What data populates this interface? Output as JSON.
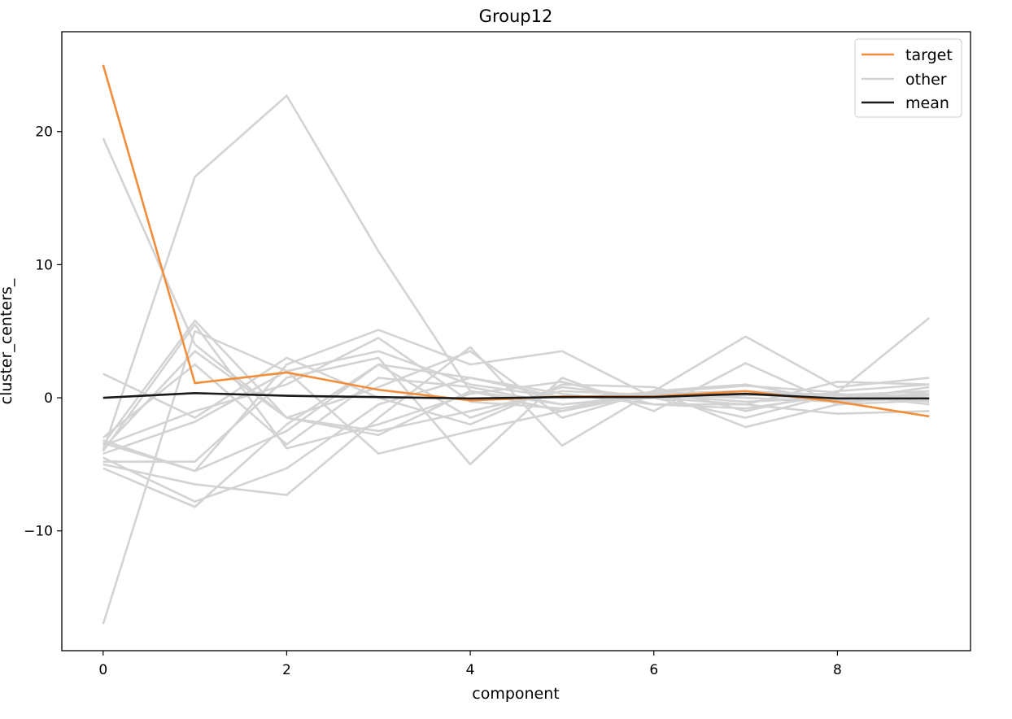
{
  "chart_data": {
    "type": "line",
    "title": "Group12",
    "xlabel": "component",
    "ylabel": "cluster_centers_",
    "x": [
      0,
      1,
      2,
      3,
      4,
      5,
      6,
      7,
      8,
      9
    ],
    "xlim": [
      -0.45,
      9.45
    ],
    "ylim": [
      -19.0,
      27.5
    ],
    "xticks": [
      0,
      2,
      4,
      6,
      8
    ],
    "yticks": [
      -10,
      0,
      10,
      20
    ],
    "ytick_labels": [
      "−10",
      "0",
      "10",
      "20"
    ],
    "legend": {
      "placement": "upper right",
      "entries": [
        "target",
        "other",
        "mean"
      ]
    },
    "colors": {
      "target": "#f28e3b",
      "other": "#d3d3d3",
      "mean": "#1a1a1a"
    },
    "series": [
      {
        "name": "other",
        "values": [
          19.5,
          4.0,
          -1.5,
          -2.5,
          -1.0,
          0.5,
          0.2,
          -0.3,
          0.0,
          0.3
        ]
      },
      {
        "name": "other",
        "values": [
          -17.0,
          5.0,
          2.0,
          3.5,
          1.0,
          0.0,
          0.3,
          0.5,
          0.2,
          0.5
        ]
      },
      {
        "name": "other",
        "values": [
          -4.0,
          16.6,
          22.7,
          11.0,
          0.5,
          -0.5,
          0.2,
          0.0,
          -0.3,
          0.2
        ]
      },
      {
        "name": "other",
        "values": [
          1.8,
          -1.5,
          3.0,
          0.0,
          -2.0,
          1.0,
          0.8,
          -1.0,
          0.5,
          1.0
        ]
      },
      {
        "name": "other",
        "values": [
          -3.5,
          5.8,
          -1.5,
          0.8,
          3.5,
          -1.5,
          0.5,
          4.6,
          0.8,
          1.5
        ]
      },
      {
        "name": "other",
        "values": [
          -3.2,
          -5.5,
          2.5,
          5.1,
          2.5,
          3.5,
          0.0,
          -0.5,
          1.2,
          1.0
        ]
      },
      {
        "name": "other",
        "values": [
          -4.8,
          -4.8,
          1.5,
          3.0,
          -5.0,
          1.5,
          -1.0,
          2.6,
          -0.5,
          0.5
        ]
      },
      {
        "name": "other",
        "values": [
          -5.0,
          -6.5,
          -7.3,
          -1.5,
          3.8,
          -3.6,
          0.5,
          1.0,
          -0.3,
          0.0
        ]
      },
      {
        "name": "other",
        "values": [
          -5.3,
          -8.2,
          -2.0,
          2.5,
          -1.5,
          0.8,
          0.0,
          -1.5,
          0.3,
          -0.5
        ]
      },
      {
        "name": "other",
        "values": [
          -3.8,
          3.5,
          -1.5,
          -2.8,
          0.5,
          -1.0,
          0.3,
          0.5,
          0.0,
          0.3
        ]
      },
      {
        "name": "other",
        "values": [
          -4.2,
          -1.8,
          2.0,
          -4.2,
          -2.5,
          -1.0,
          0.5,
          -2.2,
          -0.5,
          -0.2
        ]
      },
      {
        "name": "other",
        "values": [
          -3.0,
          2.5,
          -3.5,
          1.5,
          0.8,
          -0.5,
          0.0,
          0.2,
          0.3,
          -0.3
        ]
      },
      {
        "name": "other",
        "values": [
          -4.5,
          -7.8,
          -5.3,
          -0.5,
          1.5,
          0.3,
          -0.5,
          -0.8,
          0.2,
          0.0
        ]
      },
      {
        "name": "other",
        "values": [
          -3.6,
          -1.0,
          1.0,
          4.5,
          -0.3,
          -0.8,
          0.4,
          0.3,
          -0.2,
          0.8
        ]
      },
      {
        "name": "other",
        "values": [
          -4.0,
          5.5,
          -3.8,
          -2.0,
          0.3,
          1.2,
          -0.5,
          -0.5,
          -1.2,
          -1.0
        ]
      },
      {
        "name": "other",
        "values": [
          -3.4,
          -5.5,
          -2.5,
          2.5,
          1.5,
          0.0,
          0.4,
          0.9,
          0.4,
          6.0
        ]
      },
      {
        "name": "target",
        "values": [
          25.0,
          1.1,
          1.9,
          0.6,
          -0.2,
          0.1,
          0.1,
          0.5,
          -0.3,
          -1.4
        ]
      },
      {
        "name": "mean",
        "values": [
          0.0,
          0.35,
          0.15,
          0.05,
          -0.05,
          0.05,
          0.05,
          0.3,
          -0.05,
          -0.05
        ]
      }
    ]
  }
}
